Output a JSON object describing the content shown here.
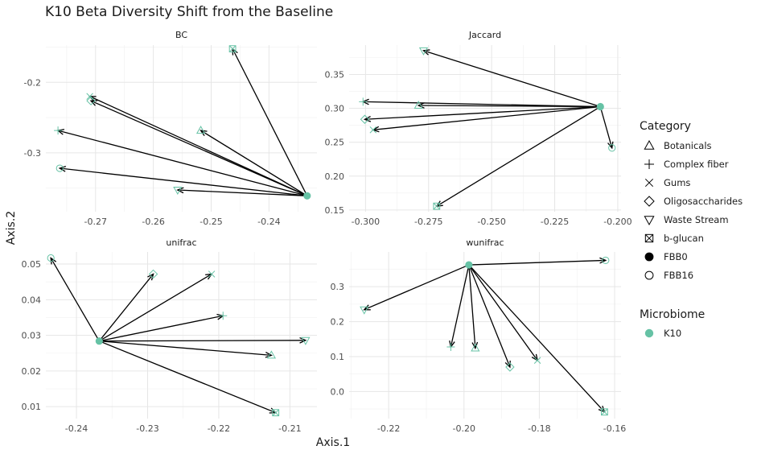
{
  "chart_data": {
    "type": "scatter",
    "title": "K10 Beta Diversity Shift from the Baseline",
    "xlabel": "Axis.1",
    "ylabel": "Axis.2",
    "point_color": "#66c2a5",
    "arrow_color": "#000000",
    "legend": {
      "placement": "right",
      "category_title": "Category",
      "categories": [
        {
          "label": "Botanicals",
          "shape": "triangle-up"
        },
        {
          "label": "Complex fiber",
          "shape": "plus"
        },
        {
          "label": "Gums",
          "shape": "cross"
        },
        {
          "label": "Oligosaccharides",
          "shape": "diamond"
        },
        {
          "label": "Waste Stream",
          "shape": "triangle-down"
        },
        {
          "label": "b-glucan",
          "shape": "square-cross"
        },
        {
          "label": "FBB0",
          "shape": "circle-filled"
        },
        {
          "label": "FBB16",
          "shape": "circle-open"
        }
      ],
      "microbiome_title": "Microbiome",
      "microbiome": [
        {
          "label": "K10",
          "color": "#66c2a5"
        }
      ]
    },
    "panels": [
      {
        "name": "BC",
        "xlim": [
          -0.2786,
          -0.2317
        ],
        "ylim": [
          -0.3835,
          -0.1472
        ],
        "xticks": [
          -0.27,
          -0.26,
          -0.25,
          -0.24
        ],
        "xtick_labels": [
          "-0.27",
          "-0.26",
          "-0.25",
          "-0.24"
        ],
        "yticks": [
          -0.3,
          -0.2
        ],
        "ytick_labels": [
          "-0.3",
          "-0.2"
        ],
        "baseline": {
          "x": -0.2334,
          "y": -0.361
        },
        "points": [
          {
            "category": "b-glucan",
            "x": -0.2463,
            "y": -0.1525
          },
          {
            "category": "Gums",
            "x": -0.271,
            "y": -0.22
          },
          {
            "category": "Oligosaccharides",
            "x": -0.2708,
            "y": -0.2262
          },
          {
            "category": "Botanicals",
            "x": -0.2518,
            "y": -0.2683
          },
          {
            "category": "Complex fiber",
            "x": -0.2765,
            "y": -0.2683
          },
          {
            "category": "FBB16",
            "x": -0.2762,
            "y": -0.3219
          },
          {
            "category": "Waste Stream",
            "x": -0.2558,
            "y": -0.3527
          }
        ]
      },
      {
        "name": "Jaccard",
        "xlim": [
          -0.3065,
          -0.1987
        ],
        "ylim": [
          0.1475,
          0.3934
        ],
        "xticks": [
          -0.3,
          -0.275,
          -0.25,
          -0.225,
          -0.2
        ],
        "xtick_labels": [
          "-0.300",
          "-0.275",
          "-0.250",
          "-0.225",
          "-0.200"
        ],
        "yticks": [
          0.15,
          0.2,
          0.25,
          0.3,
          0.35
        ],
        "ytick_labels": [
          "0.15",
          "0.20",
          "0.25",
          "0.30",
          "0.35"
        ],
        "baseline": {
          "x": -0.2069,
          "y": 0.3025
        },
        "points": [
          {
            "category": "Waste Stream",
            "x": -0.277,
            "y": 0.3853
          },
          {
            "category": "Complex fiber",
            "x": -0.301,
            "y": 0.3098
          },
          {
            "category": "Botanicals",
            "x": -0.279,
            "y": 0.3043
          },
          {
            "category": "Oligosaccharides",
            "x": -0.3003,
            "y": 0.2838
          },
          {
            "category": "Gums",
            "x": -0.297,
            "y": 0.2683
          },
          {
            "category": "FBB16",
            "x": -0.2023,
            "y": 0.2416
          },
          {
            "category": "b-glucan",
            "x": -0.2718,
            "y": 0.1556
          }
        ]
      },
      {
        "name": "unifrac",
        "xlim": [
          -0.2443,
          -0.2062
        ],
        "ylim": [
          0.00665,
          0.0534
        ],
        "xticks": [
          -0.24,
          -0.23,
          -0.22,
          -0.21
        ],
        "xtick_labels": [
          "-0.24",
          "-0.23",
          "-0.22",
          "-0.21"
        ],
        "yticks": [
          0.01,
          0.02,
          0.03,
          0.04,
          0.05
        ],
        "ytick_labels": [
          "0.01",
          "0.02",
          "0.03",
          "0.04",
          "0.05"
        ],
        "baseline": {
          "x": -0.2368,
          "y": 0.0284
        },
        "points": [
          {
            "category": "FBB16",
            "x": -0.2436,
            "y": 0.0517
          },
          {
            "category": "Oligosaccharides",
            "x": -0.2292,
            "y": 0.0472
          },
          {
            "category": "Gums",
            "x": -0.221,
            "y": 0.0472
          },
          {
            "category": "Complex fiber",
            "x": -0.2194,
            "y": 0.0355
          },
          {
            "category": "Waste Stream",
            "x": -0.2078,
            "y": 0.0286
          },
          {
            "category": "Botanicals",
            "x": -0.2126,
            "y": 0.0244
          },
          {
            "category": "b-glucan",
            "x": -0.212,
            "y": 0.0083
          }
        ]
      },
      {
        "name": "wunifrac",
        "xlim": [
          -0.2305,
          -0.1583
        ],
        "ylim": [
          -0.0775,
          0.3995
        ],
        "xticks": [
          -0.22,
          -0.2,
          -0.18,
          -0.16
        ],
        "xtick_labels": [
          "-0.22",
          "-0.20",
          "-0.18",
          "-0.16"
        ],
        "yticks": [
          0,
          0.1,
          0.2,
          0.3
        ],
        "ytick_labels": [
          "0.0",
          "0.1",
          "0.2",
          "0.3"
        ],
        "baseline": {
          "x": -0.1987,
          "y": 0.3625
        },
        "points": [
          {
            "category": "FBB16",
            "x": -0.1624,
            "y": 0.3755
          },
          {
            "category": "Waste Stream",
            "x": -0.2265,
            "y": 0.2343
          },
          {
            "category": "Complex fiber",
            "x": -0.2035,
            "y": 0.1276
          },
          {
            "category": "Botanicals",
            "x": -0.197,
            "y": 0.124
          },
          {
            "category": "Oligosaccharides",
            "x": -0.1878,
            "y": 0.07
          },
          {
            "category": "Gums",
            "x": -0.1805,
            "y": 0.089
          },
          {
            "category": "b-glucan",
            "x": -0.1627,
            "y": -0.0585
          }
        ]
      }
    ]
  }
}
